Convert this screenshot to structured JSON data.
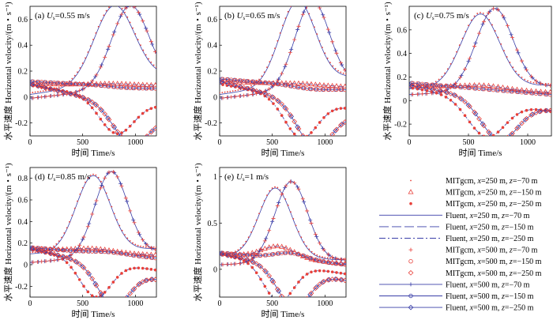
{
  "colors": {
    "mitgcm": "#e8403a",
    "fluent": "#3a3fa8"
  },
  "chart_data": [
    {
      "type": "line",
      "panel": "(a)",
      "velocity": "0.55 m/s",
      "xlabel": "时间 Time/s",
      "ylabel": "水平速度 Horizontal velocity/(m・s⁻¹)",
      "xlim": [
        0,
        1200
      ],
      "ylim": [
        -0.3,
        0.7
      ],
      "xticks": [
        0,
        500,
        1000
      ],
      "yticks": [
        -0.2,
        0,
        0.2,
        0.4,
        0.6
      ],
      "params": {
        "x250": {
          "z-70": {
            "p": 0.62,
            "t": 800,
            "w": 270,
            "b0": 0.02,
            "b1": 0.15
          },
          "z-150": {
            "s": 0.1,
            "d": 0.11,
            "t": 800,
            "w": 260,
            "e": 0.09
          },
          "z-250": {
            "s": 0.09,
            "d": -0.18,
            "t": 820,
            "w": 230,
            "e": -0.06
          }
        },
        "x500": {
          "z-70": {
            "p": 0.62,
            "t": 950,
            "w": 250,
            "b0": -0.01,
            "b1": 0.1
          },
          "z-150": {
            "s": 0.12,
            "d": 0.11,
            "t": 940,
            "w": 260,
            "e": 0.07
          },
          "z-250": {
            "s": 0.1,
            "d": -0.18,
            "t": 960,
            "w": 240,
            "e": -0.13
          }
        }
      }
    },
    {
      "type": "line",
      "panel": "(b)",
      "velocity": "0.65 m/s",
      "xlabel": "时间 Time/s",
      "ylabel": "水平速度 Horizontal velocity/(m・s⁻¹)",
      "xlim": [
        0,
        1200
      ],
      "ylim": [
        -0.3,
        0.7
      ],
      "xticks": [
        0,
        500,
        1000
      ],
      "yticks": [
        -0.2,
        0,
        0.2,
        0.4,
        0.6
      ],
      "params": {
        "x250": {
          "z-70": {
            "p": 0.66,
            "t": 740,
            "w": 240,
            "b0": 0.02,
            "b1": 0.15
          },
          "z-150": {
            "s": 0.12,
            "d": 0.13,
            "t": 740,
            "w": 250,
            "e": 0.08
          },
          "z-250": {
            "s": 0.1,
            "d": -0.2,
            "t": 770,
            "w": 220,
            "e": -0.08
          }
        },
        "x500": {
          "z-70": {
            "p": 0.66,
            "t": 880,
            "w": 230,
            "b0": -0.01,
            "b1": 0.1
          },
          "z-150": {
            "s": 0.14,
            "d": 0.12,
            "t": 880,
            "w": 250,
            "e": 0.06
          },
          "z-250": {
            "s": 0.12,
            "d": -0.2,
            "t": 900,
            "w": 230,
            "e": -0.13
          }
        }
      }
    },
    {
      "type": "line",
      "panel": "(c)",
      "velocity": "0.75 m/s",
      "xlabel": "时间 Time/s",
      "ylabel": "水平速度 Horizontal velocity/(m・s⁻¹)",
      "xlim": [
        0,
        1200
      ],
      "ylim": [
        -0.3,
        0.8
      ],
      "xticks": [
        0,
        500,
        1000
      ],
      "yticks": [
        -0.2,
        0,
        0.2,
        0.4,
        0.6
      ],
      "params": {
        "x250": {
          "z-70": {
            "p": 0.72,
            "t": 600,
            "w": 230,
            "b0": 0.1,
            "b1": 0.13
          },
          "z-150": {
            "s": 0.13,
            "d": 0.16,
            "t": 620,
            "w": 260,
            "e": 0.07
          },
          "z-250": {
            "s": 0.11,
            "d": -0.2,
            "t": 650,
            "w": 220,
            "e": -0.09
          }
        },
        "x500": {
          "z-70": {
            "p": 0.74,
            "t": 720,
            "w": 220,
            "b0": 0.05,
            "b1": 0.12
          },
          "z-150": {
            "s": 0.15,
            "d": 0.15,
            "t": 730,
            "w": 250,
            "e": 0.05
          },
          "z-250": {
            "s": 0.13,
            "d": -0.2,
            "t": 760,
            "w": 220,
            "e": -0.08
          }
        }
      }
    },
    {
      "type": "line",
      "panel": "(d)",
      "velocity": "0.85 m/s",
      "xlabel": "时间 Time/s",
      "ylabel": "水平速度 Horizontal velocity/(m・s⁻¹)",
      "xlim": [
        0,
        1200
      ],
      "ylim": [
        -0.3,
        0.9
      ],
      "xticks": [
        0,
        500,
        1000
      ],
      "yticks": [
        -0.2,
        0,
        0.2,
        0.4,
        0.6,
        0.8
      ],
      "params": {
        "x250": {
          "z-70": {
            "p": 0.8,
            "t": 600,
            "w": 230,
            "b0": 0.1,
            "b1": 0.15
          },
          "z-150": {
            "s": 0.15,
            "d": 0.18,
            "t": 600,
            "w": 250,
            "e": 0.09
          },
          "z-250": {
            "s": 0.14,
            "d": -0.2,
            "t": 620,
            "w": 210,
            "e": -0.05
          }
        },
        "x500": {
          "z-70": {
            "p": 0.8,
            "t": 770,
            "w": 220,
            "b0": 0.02,
            "b1": 0.12
          },
          "z-150": {
            "s": 0.16,
            "d": 0.18,
            "t": 760,
            "w": 250,
            "e": 0.06
          },
          "z-250": {
            "s": 0.15,
            "d": -0.2,
            "t": 790,
            "w": 210,
            "e": -0.13
          }
        }
      }
    },
    {
      "type": "line",
      "panel": "(e)",
      "velocity": "1 m/s",
      "xlabel": "时间 Time/s",
      "ylabel": "水平速度 Horizontal velocity/(m・s⁻¹)",
      "xlim": [
        0,
        1200
      ],
      "ylim": [
        -0.3,
        1.1
      ],
      "xticks": [
        0,
        500,
        1000
      ],
      "yticks": [
        0,
        0.5,
        1.0
      ],
      "params": {
        "x250": {
          "z-70": {
            "p": 0.9,
            "t": 530,
            "w": 220,
            "b0": 0.15,
            "b1": 0.1
          },
          "z-150": {
            "s": 0.17,
            "d": 0.3,
            "t": 560,
            "w": 220,
            "e": 0.06
          },
          "z-250": {
            "s": 0.16,
            "d": -0.25,
            "t": 560,
            "w": 200,
            "e": -0.05
          }
        },
        "x500": {
          "z-70": {
            "p": 0.92,
            "t": 680,
            "w": 220,
            "b0": 0.05,
            "b1": 0.1
          },
          "z-150": {
            "s": 0.18,
            "d": 0.25,
            "t": 680,
            "w": 220,
            "e": 0.05
          },
          "z-250": {
            "s": 0.17,
            "d": -0.25,
            "t": 700,
            "w": 210,
            "e": -0.12
          }
        }
      }
    }
  ],
  "legend": [
    {
      "label": "MITgcm, x=250 m, z=−70 m",
      "src": "MITgcm",
      "xv": "250",
      "zv": "−70",
      "style": "dot-250-70"
    },
    {
      "label": "MITgcm, x=250 m, z=−150 m",
      "src": "MITgcm",
      "xv": "250",
      "zv": "−150",
      "style": "tri-250-150"
    },
    {
      "label": "MITgcm, x=250 m, z=−250 m",
      "src": "MITgcm",
      "xv": "250",
      "zv": "−250",
      "style": "star-250-250"
    },
    {
      "label": "Fluent, x=250 m, z=−70 m",
      "src": "Fluent",
      "xv": "250",
      "zv": "−70",
      "style": "solid"
    },
    {
      "label": "Fluent, x=250 m, z=−150 m",
      "src": "Fluent",
      "xv": "250",
      "zv": "−150",
      "style": "dash"
    },
    {
      "label": "Fluent, x=250 m, z=−250 m",
      "src": "Fluent",
      "xv": "250",
      "zv": "−250",
      "style": "dashdot"
    },
    {
      "label": "MITgcm, x=500 m, z=−70 m",
      "src": "MITgcm",
      "xv": "500",
      "zv": "−70",
      "style": "plus"
    },
    {
      "label": "MITgcm, x=500 m, z=−150 m",
      "src": "MITgcm",
      "xv": "500",
      "zv": "−150",
      "style": "circle"
    },
    {
      "label": "MITgcm, x=500 m, z=−250 m",
      "src": "MITgcm",
      "xv": "500",
      "zv": "−250",
      "style": "diamond"
    },
    {
      "label": "Fluent, x=500 m, z=−70 m",
      "src": "Fluent",
      "xv": "500",
      "zv": "−70",
      "style": "line-plus"
    },
    {
      "label": "Fluent, x=500 m, z=−150 m",
      "src": "Fluent",
      "xv": "500",
      "zv": "−150",
      "style": "line-circle"
    },
    {
      "label": "Fluent, x=500 m, z=−250 m",
      "src": "Fluent",
      "xv": "500",
      "zv": "−250",
      "style": "line-diamond"
    }
  ]
}
